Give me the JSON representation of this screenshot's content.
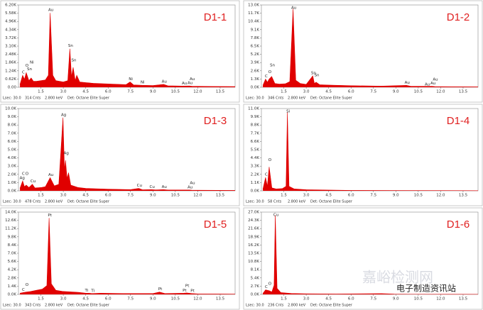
{
  "chart_data": [
    {
      "type": "area",
      "title": "D1-1",
      "color": "#e00000",
      "xlim": [
        0,
        14.5
      ],
      "ylim": [
        0,
        6200
      ],
      "xticks": [
        1.5,
        {
          "value": 3,
          "label": "3.0"
        },
        4.5,
        {
          "value": 6,
          "label": "6.0"
        },
        7.5,
        {
          "value": 9,
          "label": "9.0"
        },
        10.5,
        {
          "value": 12,
          "label": "12.0"
        },
        13.5
      ],
      "yticks": [
        {
          "value": 0,
          "label": "0.00"
        },
        {
          "value": 620,
          "label": "0.62K"
        },
        {
          "value": 1240,
          "label": "1.24K"
        },
        {
          "value": 1860,
          "label": "1.86K"
        },
        {
          "value": 2480,
          "label": "2.48K"
        },
        {
          "value": 3100,
          "label": "3.10K"
        },
        {
          "value": 3720,
          "label": "3.72K"
        },
        {
          "value": 4340,
          "label": "4.34K"
        },
        {
          "value": 4960,
          "label": "4.96K"
        },
        {
          "value": 5580,
          "label": "5.58K"
        },
        {
          "value": 6200,
          "label": "6.20K"
        }
      ],
      "x": [
        0.1,
        0.28,
        0.4,
        0.52,
        0.7,
        0.85,
        1.0,
        1.2,
        1.5,
        1.8,
        2.0,
        2.12,
        2.3,
        2.5,
        3.0,
        3.3,
        3.44,
        3.55,
        3.66,
        3.8,
        3.9,
        4.1,
        4.5,
        5.0,
        6.0,
        7.2,
        7.47,
        7.7,
        8.26,
        9.0,
        9.71,
        10.0,
        11.0,
        11.44,
        11.6,
        12.0,
        13.0,
        14.5
      ],
      "values": [
        200,
        900,
        600,
        1100,
        500,
        700,
        450,
        450,
        500,
        550,
        900,
        5600,
        900,
        500,
        400,
        500,
        2900,
        800,
        1500,
        500,
        900,
        400,
        350,
        300,
        250,
        200,
        400,
        180,
        150,
        130,
        220,
        110,
        90,
        100,
        80,
        70,
        60,
        50
      ],
      "peak_labels": [
        {
          "text": "C",
          "x": 0.28
        },
        {
          "text": "O",
          "x": 0.52
        },
        {
          "text": "Sn",
          "x": 0.69
        },
        {
          "text": "Ni",
          "x": 0.85
        },
        {
          "text": "Au",
          "x": 2.12
        },
        {
          "text": "Sn",
          "x": 3.44
        },
        {
          "text": "Sn",
          "x": 3.66
        },
        {
          "text": "Ni",
          "x": 7.47
        },
        {
          "text": "Ni",
          "x": 8.26
        },
        {
          "text": "Au",
          "x": 9.71
        },
        {
          "text": "Au",
          "x": 11.06
        },
        {
          "text": "Au",
          "x": 11.44
        },
        {
          "text": "Au",
          "x": 11.58
        }
      ],
      "footer": [
        "Lsec: 30.0",
        "314 Cnts",
        "2.800 keV",
        "Det: Octane Elite Super"
      ]
    },
    {
      "type": "area",
      "title": "D1-2",
      "color": "#e00000",
      "xlim": [
        0,
        14.5
      ],
      "ylim": [
        0,
        13000
      ],
      "xticks": [
        1.5,
        {
          "value": 3,
          "label": "3.0"
        },
        4.5,
        {
          "value": 6,
          "label": "6.0"
        },
        7.5,
        {
          "value": 9,
          "label": "9.0"
        },
        10.5,
        {
          "value": 12,
          "label": "12.0"
        },
        13.5
      ],
      "yticks": [
        {
          "value": 0,
          "label": "0.0K"
        },
        {
          "value": 1300,
          "label": "1.3K"
        },
        {
          "value": 2600,
          "label": "2.6K"
        },
        {
          "value": 3900,
          "label": "3.9K"
        },
        {
          "value": 5200,
          "label": "5.2K"
        },
        {
          "value": 6500,
          "label": "6.5K"
        },
        {
          "value": 7800,
          "label": "7.8K"
        },
        {
          "value": 9100,
          "label": "9.1K"
        },
        {
          "value": 10400,
          "label": "10.4K"
        },
        {
          "value": 11700,
          "label": "11.7K"
        },
        {
          "value": 13000,
          "label": "13.0K"
        }
      ],
      "x": [
        0.1,
        0.28,
        0.4,
        0.52,
        0.69,
        0.9,
        1.2,
        1.6,
        1.9,
        2.12,
        2.3,
        2.6,
        3.0,
        3.44,
        3.55,
        3.66,
        3.9,
        4.5,
        6,
        8,
        9.71,
        10,
        11.44,
        11.6,
        12,
        14.5
      ],
      "values": [
        300,
        1300,
        800,
        1300,
        1700,
        600,
        500,
        550,
        900,
        12400,
        1100,
        600,
        450,
        1800,
        600,
        800,
        400,
        350,
        250,
        180,
        300,
        150,
        150,
        110,
        90,
        60
      ],
      "peak_labels": [
        {
          "text": "C",
          "x": 0.28
        },
        {
          "text": "O",
          "x": 0.52
        },
        {
          "text": "Sn",
          "x": 0.69
        },
        {
          "text": "Au",
          "x": 2.12
        },
        {
          "text": "Sn",
          "x": 3.44
        },
        {
          "text": "Sn",
          "x": 3.66
        },
        {
          "text": "Au",
          "x": 9.71
        },
        {
          "text": "Au",
          "x": 11.06
        },
        {
          "text": "Au",
          "x": 11.44
        },
        {
          "text": "Au",
          "x": 11.6
        }
      ],
      "footer": [
        "Lsec: 30.0",
        "346 Cnts",
        "2.800 keV",
        "Det: Octane Elite Super"
      ]
    },
    {
      "type": "area",
      "title": "D1-3",
      "color": "#e00000",
      "xlim": [
        0,
        14.5
      ],
      "ylim": [
        0,
        10000
      ],
      "xticks": [
        1.5,
        {
          "value": 3,
          "label": "3.0"
        },
        4.5,
        {
          "value": 6,
          "label": "6.0"
        },
        7.5,
        {
          "value": 9,
          "label": "9.0"
        },
        10.5,
        {
          "value": 12,
          "label": "12.0"
        },
        13.5
      ],
      "yticks": [
        {
          "value": 0,
          "label": "0.0K"
        },
        {
          "value": 1000,
          "label": "1.0K"
        },
        {
          "value": 2000,
          "label": "2.0K"
        },
        {
          "value": 3000,
          "label": "3.0K"
        },
        {
          "value": 4000,
          "label": "4.0K"
        },
        {
          "value": 5000,
          "label": "5.0K"
        },
        {
          "value": 6000,
          "label": "6.0K"
        },
        {
          "value": 7000,
          "label": "7.0K"
        },
        {
          "value": 8000,
          "label": "8.0K"
        },
        {
          "value": 9000,
          "label": "9.0K"
        },
        {
          "value": 10000,
          "label": "10.0K"
        }
      ],
      "x": [
        0.1,
        0.28,
        0.4,
        0.52,
        0.7,
        0.93,
        1.1,
        1.5,
        1.8,
        2.12,
        2.4,
        2.7,
        2.98,
        3.08,
        3.15,
        3.25,
        3.35,
        3.5,
        4.0,
        4.5,
        6,
        7.5,
        8.05,
        8.3,
        8.9,
        9.2,
        9.71,
        10,
        11.44,
        11.6,
        12,
        14.5
      ],
      "values": [
        300,
        1200,
        500,
        700,
        400,
        800,
        350,
        400,
        500,
        1600,
        600,
        800,
        8900,
        2500,
        3700,
        1500,
        2200,
        700,
        400,
        300,
        200,
        150,
        300,
        130,
        150,
        110,
        150,
        100,
        100,
        80,
        70,
        50
      ],
      "peak_labels": [
        {
          "text": "Ag",
          "x": 0.2
        },
        {
          "text": "C",
          "x": 0.28
        },
        {
          "text": "O",
          "x": 0.52
        },
        {
          "text": "Cu",
          "x": 0.93
        },
        {
          "text": "Au",
          "x": 2.12
        },
        {
          "text": "Ag",
          "x": 2.98
        },
        {
          "text": "Ag",
          "x": 3.15
        },
        {
          "text": "Cu",
          "x": 8.05
        },
        {
          "text": "Cu",
          "x": 8.9
        },
        {
          "text": "Au",
          "x": 9.71
        },
        {
          "text": "Au",
          "x": 11.44
        },
        {
          "text": "Au",
          "x": 11.6
        }
      ],
      "footer": [
        "Lsec: 30.0",
        "478 Cnts",
        "2.800 keV",
        "Det: Octane Elite Super"
      ]
    },
    {
      "type": "area",
      "title": "D1-4",
      "color": "#e00000",
      "xlim": [
        0,
        14.5
      ],
      "ylim": [
        0,
        11000
      ],
      "xticks": [
        1.5,
        {
          "value": 3,
          "label": "3.0"
        },
        4.5,
        {
          "value": 6,
          "label": "6.0"
        },
        7.5,
        {
          "value": 9,
          "label": "9.0"
        },
        10.5,
        {
          "value": 12,
          "label": "12.0"
        },
        13.5
      ],
      "yticks": [
        {
          "value": 0,
          "label": "0.0K"
        },
        {
          "value": 1100,
          "label": "1.1K"
        },
        {
          "value": 2200,
          "label": "2.2K"
        },
        {
          "value": 3300,
          "label": "3.3K"
        },
        {
          "value": 4400,
          "label": "4.4K"
        },
        {
          "value": 5500,
          "label": "5.5K"
        },
        {
          "value": 6600,
          "label": "6.6K"
        },
        {
          "value": 7700,
          "label": "7.7K"
        },
        {
          "value": 8800,
          "label": "8.8K"
        },
        {
          "value": 9900,
          "label": "9.9K"
        },
        {
          "value": 11000,
          "label": "11.0K"
        }
      ],
      "x": [
        0.1,
        0.28,
        0.4,
        0.52,
        0.7,
        1.0,
        1.4,
        1.65,
        1.74,
        1.85,
        2.2,
        3,
        4.5,
        6,
        9,
        14.5
      ],
      "values": [
        200,
        1800,
        600,
        3200,
        400,
        250,
        300,
        600,
        10500,
        600,
        250,
        150,
        100,
        60,
        40,
        20
      ],
      "peak_labels": [
        {
          "text": "C",
          "x": 0.28
        },
        {
          "text": "O",
          "x": 0.52
        },
        {
          "text": "Si",
          "x": 1.74
        }
      ],
      "footer": [
        "Lsec: 30.0",
        "58 Cnts",
        "2.800 keV",
        "Det: Octane Elite Super"
      ]
    },
    {
      "type": "area",
      "title": "D1-5",
      "color": "#e00000",
      "xlim": [
        0,
        14.5
      ],
      "ylim": [
        0,
        14000
      ],
      "xticks": [
        1.5,
        {
          "value": 3,
          "label": "3.0"
        },
        4.5,
        {
          "value": 6,
          "label": "6.0"
        },
        7.5,
        {
          "value": 9,
          "label": "9.0"
        },
        10.5,
        {
          "value": 12,
          "label": "12.0"
        },
        13.5
      ],
      "yticks": [
        {
          "value": 0,
          "label": "0.0K"
        },
        {
          "value": 1400,
          "label": "1.4K"
        },
        {
          "value": 2800,
          "label": "2.8K"
        },
        {
          "value": 4200,
          "label": "4.2K"
        },
        {
          "value": 5600,
          "label": "5.6K"
        },
        {
          "value": 7000,
          "label": "7.0K"
        },
        {
          "value": 8400,
          "label": "8.4K"
        },
        {
          "value": 9800,
          "label": "9.8K"
        },
        {
          "value": 11200,
          "label": "11.2K"
        },
        {
          "value": 12600,
          "label": "12.6K"
        },
        {
          "value": 14000,
          "label": "14.0K"
        }
      ],
      "x": [
        0.1,
        0.28,
        0.52,
        0.8,
        1.2,
        1.6,
        1.9,
        2.05,
        2.2,
        2.5,
        3,
        4,
        4.51,
        4.7,
        4.93,
        5.5,
        7,
        9.0,
        9.44,
        9.8,
        11.07,
        11.25,
        11.6,
        12,
        14.5
      ],
      "values": [
        200,
        300,
        400,
        500,
        700,
        900,
        1500,
        13000,
        1800,
        700,
        500,
        350,
        200,
        200,
        150,
        200,
        150,
        150,
        400,
        150,
        200,
        250,
        150,
        90,
        50
      ],
      "peak_labels": [
        {
          "text": "C",
          "x": 0.28
        },
        {
          "text": "O",
          "x": 0.52
        },
        {
          "text": "Pt",
          "x": 2.05
        },
        {
          "text": "Ti",
          "x": 4.51
        },
        {
          "text": "Ti",
          "x": 4.93
        },
        {
          "text": "Pt",
          "x": 9.44
        },
        {
          "text": "Pt",
          "x": 11.07
        },
        {
          "text": "Pt",
          "x": 11.25
        },
        {
          "text": "Pt",
          "x": 11.6
        }
      ],
      "footer": [
        "Lsec: 30.0",
        "343 Cnts",
        "2.800 keV",
        "Det: Octane Elite Super"
      ]
    },
    {
      "type": "area",
      "title": "D1-6",
      "color": "#e00000",
      "xlim": [
        0,
        14.5
      ],
      "ylim": [
        0,
        27000
      ],
      "xticks": [
        1.5,
        {
          "value": 3,
          "label": "3.0"
        },
        4.5,
        {
          "value": 6,
          "label": "6.0"
        },
        7.5,
        {
          "value": 9,
          "label": "9.0"
        },
        10.5,
        {
          "value": 12,
          "label": "12.0"
        },
        13.5
      ],
      "yticks": [
        {
          "value": 0,
          "label": "0.0K"
        },
        {
          "value": 2700,
          "label": "2.7K"
        },
        {
          "value": 5400,
          "label": "5.4K"
        },
        {
          "value": 8100,
          "label": "8.1K"
        },
        {
          "value": 10800,
          "label": "10.8K"
        },
        {
          "value": 13500,
          "label": "13.5K"
        },
        {
          "value": 16200,
          "label": "16.2K"
        },
        {
          "value": 18900,
          "label": "18.9K"
        },
        {
          "value": 21600,
          "label": "21.6K"
        },
        {
          "value": 24300,
          "label": "24.3K"
        },
        {
          "value": 27000,
          "label": "27.0K"
        }
      ],
      "x": [
        0.1,
        0.28,
        0.52,
        0.7,
        0.85,
        0.93,
        1.05,
        1.3,
        2,
        3,
        5,
        8.05,
        8.9,
        10,
        14.5
      ],
      "values": [
        300,
        1500,
        1200,
        800,
        3000,
        26000,
        2000,
        600,
        300,
        200,
        120,
        250,
        100,
        60,
        30
      ],
      "peak_labels": [
        {
          "text": "C",
          "x": 0.28
        },
        {
          "text": "O",
          "x": 0.52
        },
        {
          "text": "Cu",
          "x": 0.93
        }
      ],
      "footer": [
        "Lsec: 30.0",
        "236 Cnts",
        "2.800 keV",
        "Det: Octane Elite Super"
      ]
    }
  ],
  "watermark": [
    "嘉峪检测网",
    "电子制造资讯站"
  ]
}
